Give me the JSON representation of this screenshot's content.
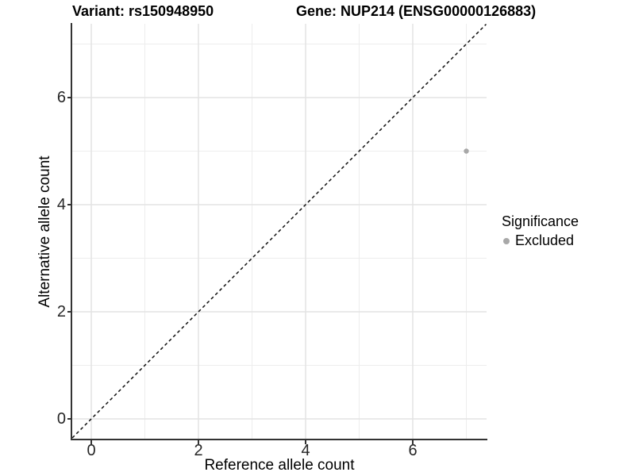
{
  "titles": {
    "left": "Variant: rs150948950",
    "right": "Gene: NUP214 (ENSG00000126883)"
  },
  "chart_data": {
    "type": "scatter",
    "title": "Variant: rs150948950 — Gene: NUP214 (ENSG00000126883)",
    "xlabel": "Reference allele count",
    "ylabel": "Alternative allele count",
    "xlim": [
      -0.356,
      7.378
    ],
    "ylim": [
      -0.37,
      7.37
    ],
    "x_major_ticks": [
      0,
      2,
      4,
      6
    ],
    "y_major_ticks": [
      0,
      2,
      4,
      6
    ],
    "x_minor_ticks": [
      1,
      3,
      5,
      7
    ],
    "y_minor_ticks": [
      1,
      3,
      5,
      7
    ],
    "grid": "major+minor",
    "legend_position": "right",
    "legend_title": "Significance",
    "series": [
      {
        "name": "Excluded",
        "color": "#a8a8a8",
        "points": [
          {
            "x": 7,
            "y": 5
          }
        ]
      }
    ],
    "reference_line": {
      "type": "identity",
      "slope": 1,
      "intercept": 0,
      "style": "dashed",
      "color": "#111111"
    }
  },
  "colors": {
    "background": "#ffffff",
    "grid_major": "#e3e3e3",
    "grid_minor": "#ededed",
    "axis_line": "#333333",
    "tick_label": "#262626",
    "point": "#a8a8a8"
  }
}
